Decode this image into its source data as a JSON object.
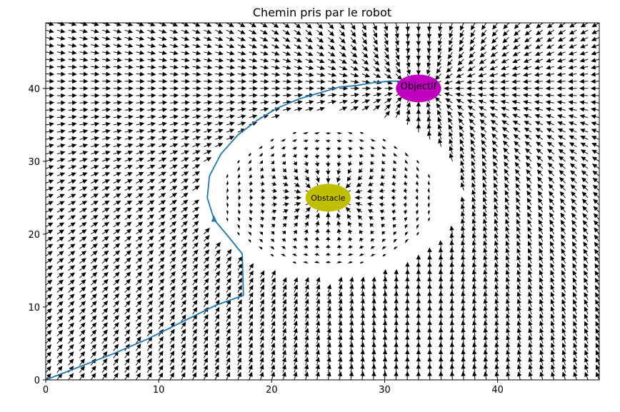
{
  "chart_data": {
    "type": "quiver",
    "title": "Chemin pris par le robot",
    "xlabel": "",
    "ylabel": "",
    "xlim": [
      0,
      49
    ],
    "ylim": [
      0,
      49
    ],
    "xticks": [
      0,
      10,
      20,
      30,
      40
    ],
    "yticks": [
      0,
      10,
      20,
      30,
      40
    ],
    "grid": false,
    "field": {
      "spacing": 1,
      "obstacle_center": [
        25,
        25
      ],
      "obstacle_radius": 2,
      "obstacle_influence": 12,
      "goal_center": [
        33,
        40
      ],
      "goal_radius": 2,
      "color": "#000000"
    },
    "obstacle": {
      "label": "Obstacle",
      "center": [
        25,
        25
      ],
      "width": 4,
      "height": 4,
      "color": "#bfbf00"
    },
    "goal": {
      "label": "Objectif",
      "center": [
        33,
        40
      ],
      "width": 4,
      "height": 4,
      "color": "#bf00bf"
    },
    "path": {
      "color": "#1f77b4",
      "points": [
        [
          0,
          0
        ],
        [
          3,
          1.8
        ],
        [
          6,
          3.6
        ],
        [
          9,
          5.6
        ],
        [
          12,
          7.9
        ],
        [
          15,
          10.2
        ],
        [
          17.5,
          11.6
        ],
        [
          17.4,
          17.3
        ],
        [
          16.2,
          19.6
        ],
        [
          14.9,
          22.0
        ],
        [
          14.3,
          25.0
        ],
        [
          14.5,
          28.0
        ],
        [
          15.5,
          31.0
        ],
        [
          17.0,
          33.6
        ],
        [
          18.7,
          35.6
        ],
        [
          20.5,
          37.3
        ],
        [
          22.5,
          38.6
        ],
        [
          24.5,
          39.5
        ],
        [
          26.0,
          40.2
        ],
        [
          27.5,
          40.4
        ],
        [
          29.0,
          40.8
        ],
        [
          30.5,
          41.0
        ],
        [
          32.0,
          41.0
        ],
        [
          33.2,
          40.4
        ]
      ],
      "arrow_at": [
        14.9,
        22.0
      ]
    }
  }
}
